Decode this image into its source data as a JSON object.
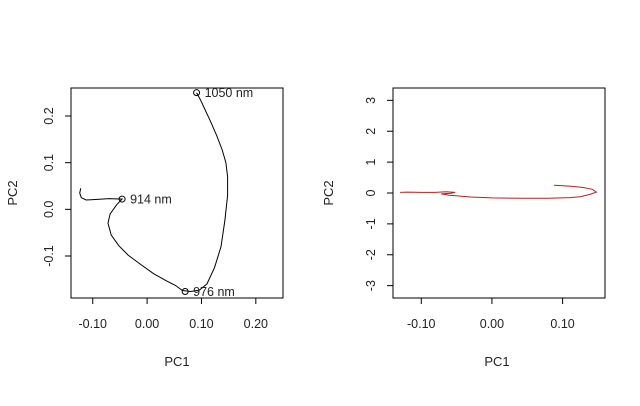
{
  "chart_data": [
    {
      "type": "line",
      "panel": "left",
      "xlabel": "PC1",
      "ylabel": "PC2",
      "xlim": [
        -0.14,
        0.25
      ],
      "ylim": [
        -0.19,
        0.26
      ],
      "xticks": [
        -0.1,
        0.0,
        0.1,
        0.2
      ],
      "xtick_labels": [
        "-0.10",
        "0.00",
        "0.10",
        "0.20"
      ],
      "yticks": [
        -0.1,
        0.0,
        0.1,
        0.2
      ],
      "ytick_labels": [
        "-0.1",
        "0.0",
        "0.1",
        "0.2"
      ],
      "line_color": "#000000",
      "x": [
        -0.122,
        -0.124,
        -0.121,
        -0.112,
        -0.095,
        -0.07,
        -0.046,
        -0.056,
        -0.068,
        -0.072,
        -0.066,
        -0.052,
        -0.035,
        -0.012,
        0.012,
        0.035,
        0.052,
        0.065,
        0.08,
        0.096,
        0.11,
        0.124,
        0.136,
        0.143,
        0.148,
        0.148,
        0.145,
        0.138,
        0.128,
        0.116,
        0.106,
        0.098,
        0.091
      ],
      "y": [
        0.045,
        0.035,
        0.025,
        0.02,
        0.021,
        0.023,
        0.022,
        0.01,
        -0.01,
        -0.03,
        -0.055,
        -0.078,
        -0.098,
        -0.118,
        -0.138,
        -0.153,
        -0.163,
        -0.174,
        -0.176,
        -0.173,
        -0.16,
        -0.125,
        -0.08,
        -0.025,
        0.03,
        0.07,
        0.1,
        0.128,
        0.158,
        0.19,
        0.215,
        0.235,
        0.25
      ],
      "annotations": [
        {
          "label": "914 nm",
          "x": -0.046,
          "y": 0.022
        },
        {
          "label": "976 nm",
          "x": 0.07,
          "y": -0.176
        },
        {
          "label": "1050 nm",
          "x": 0.091,
          "y": 0.25
        }
      ]
    },
    {
      "type": "line",
      "panel": "right",
      "xlabel": "PC1",
      "ylabel": "PC2",
      "xlim": [
        -0.14,
        0.16
      ],
      "ylim": [
        -3.4,
        3.4
      ],
      "xticks": [
        -0.1,
        0.0,
        0.1
      ],
      "xtick_labels": [
        "-0.10",
        "0.00",
        "0.10"
      ],
      "yticks": [
        -3,
        -2,
        -1,
        0,
        1,
        2,
        3
      ],
      "ytick_labels": [
        "-3",
        "-2",
        "-1",
        "0",
        "1",
        "2",
        "3"
      ],
      "line_color": "#b22222",
      "x": [
        -0.13,
        -0.12,
        -0.1,
        -0.08,
        -0.065,
        -0.052,
        -0.058,
        -0.072,
        -0.06,
        -0.03,
        0.0,
        0.04,
        0.08,
        0.11,
        0.125,
        0.138,
        0.148,
        0.142,
        0.128,
        0.112,
        0.098,
        0.088
      ],
      "y": [
        0.02,
        0.03,
        0.02,
        0.02,
        0.04,
        0.02,
        -0.01,
        -0.03,
        -0.07,
        -0.13,
        -0.16,
        -0.17,
        -0.17,
        -0.15,
        -0.12,
        -0.05,
        0.03,
        0.12,
        0.18,
        0.22,
        0.24,
        0.25
      ]
    }
  ]
}
